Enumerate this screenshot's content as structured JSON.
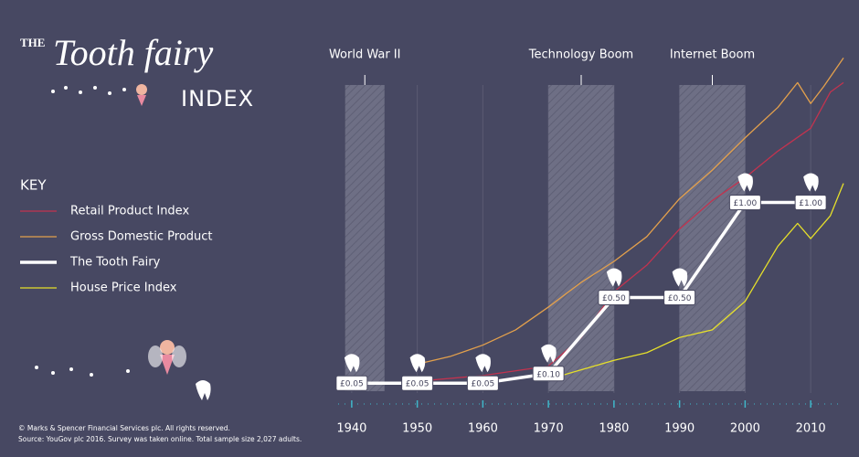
{
  "chart_data": {
    "type": "line",
    "title_prefix": "THE",
    "title": "Tooth fairy",
    "title_suffix": "INDEX",
    "legend_title": "KEY",
    "xlim": [
      1935,
      2015
    ],
    "xticks": [
      1940,
      1950,
      1960,
      1970,
      1980,
      1990,
      2000,
      2010
    ],
    "ylim": [
      -0.05,
      1.8
    ],
    "grid": true,
    "periods": [
      {
        "label": "World War II",
        "start": 1939,
        "end": 1945
      },
      {
        "label": "Technology Boom",
        "start": 1970,
        "end": 1980
      },
      {
        "label": "Internet Boom",
        "start": 1990,
        "end": 2000
      }
    ],
    "series": [
      {
        "name": "Retail Product Index",
        "color": "#c2334f",
        "x": [
          1950,
          1960,
          1970,
          1975,
          1980,
          1985,
          1990,
          1995,
          2000,
          2005,
          2010,
          2013,
          2015
        ],
        "values": [
          0.06,
          0.09,
          0.14,
          0.29,
          0.53,
          0.67,
          0.86,
          1.01,
          1.13,
          1.27,
          1.39,
          1.58,
          1.63
        ]
      },
      {
        "name": "Gross Domestic Product",
        "color": "#e3a04c",
        "x": [
          1950,
          1955,
          1960,
          1965,
          1970,
          1975,
          1980,
          1985,
          1990,
          1995,
          2000,
          2005,
          2008,
          2010,
          2012,
          2015
        ],
        "values": [
          0.15,
          0.19,
          0.25,
          0.33,
          0.45,
          0.58,
          0.69,
          0.82,
          1.02,
          1.17,
          1.34,
          1.5,
          1.63,
          1.52,
          1.61,
          1.76
        ]
      },
      {
        "name": "The Tooth Fairy",
        "color": "#ffffff",
        "x": [
          1940,
          1950,
          1960,
          1970,
          1980,
          1990,
          2000,
          2010
        ],
        "values": [
          0.05,
          0.05,
          0.05,
          0.1,
          0.5,
          0.5,
          1.0,
          1.0
        ],
        "value_labels": [
          "£0.05",
          "£0.05",
          "£0.05",
          "£0.10",
          "£0.50",
          "£0.50",
          "£1.00",
          "£1.00"
        ]
      },
      {
        "name": "House Price Index",
        "color": "#e6e02a",
        "x": [
          1970,
          1975,
          1980,
          1985,
          1990,
          1995,
          2000,
          2005,
          2008,
          2010,
          2013,
          2015
        ],
        "values": [
          0.07,
          0.12,
          0.17,
          0.21,
          0.29,
          0.33,
          0.48,
          0.77,
          0.89,
          0.81,
          0.93,
          1.1
        ]
      }
    ],
    "footnotes": [
      "© Marks & Spencer Financial Services plc. All rights reserved.",
      "Source: YouGov plc 2016. Survey was taken online. Total sample size 2,027 adults."
    ]
  }
}
